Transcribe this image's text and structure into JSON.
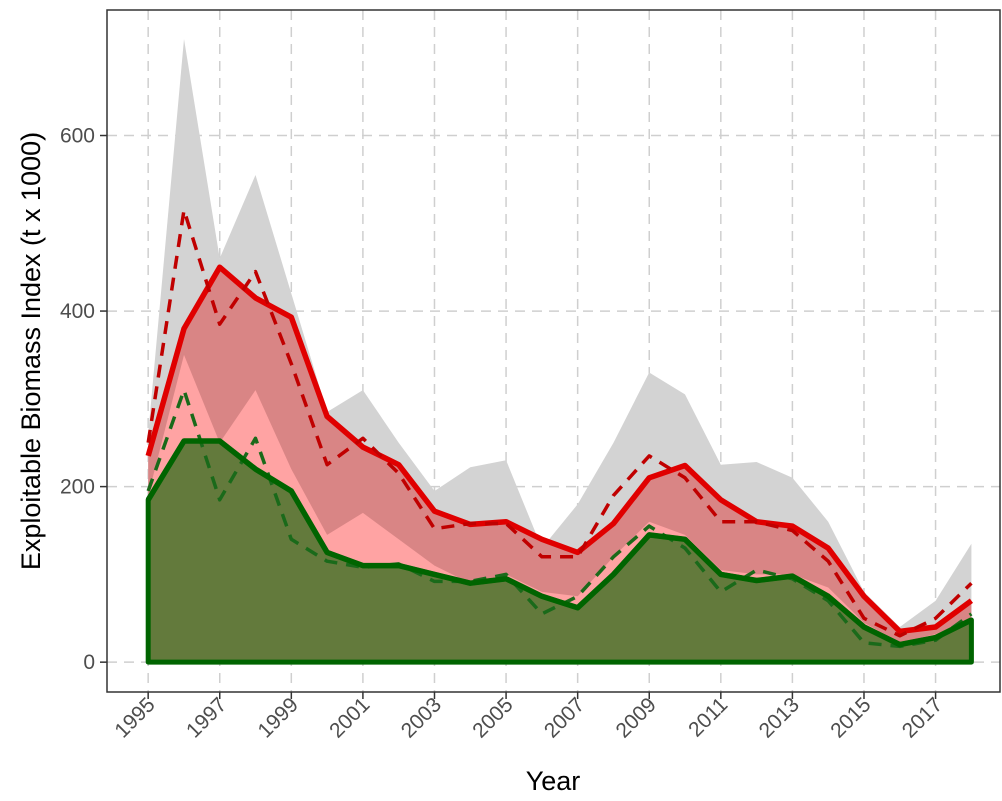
{
  "chart_data": {
    "type": "line",
    "x_label": "Year",
    "y_label": "Exploitable Biomass Index (t x 1000)",
    "x": [
      1995,
      1996,
      1997,
      1998,
      1999,
      2000,
      2001,
      2002,
      2003,
      2004,
      2005,
      2006,
      2007,
      2008,
      2009,
      2010,
      2011,
      2012,
      2013,
      2014,
      2015,
      2016,
      2017,
      2018
    ],
    "series": [
      {
        "style": "area",
        "color": "#d3d3d3",
        "values": [
          260,
          710,
          460,
          555,
          420,
          285,
          310,
          250,
          195,
          222,
          230,
          130,
          180,
          250,
          330,
          305,
          225,
          228,
          210,
          160,
          80,
          40,
          70,
          135
        ]
      },
      {
        "style": "area",
        "color": "#d98585",
        "values": [
          235,
          380,
          450,
          415,
          393,
          280,
          245,
          225,
          172,
          157,
          160,
          140,
          125,
          158,
          210,
          224,
          185,
          160,
          155,
          130,
          75,
          35,
          40,
          70
        ]
      },
      {
        "style": "area",
        "color": "#ffa3a3",
        "values": [
          190,
          350,
          250,
          310,
          220,
          145,
          170,
          140,
          110,
          90,
          100,
          80,
          75,
          120,
          160,
          145,
          105,
          100,
          100,
          85,
          45,
          22,
          32,
          50
        ]
      },
      {
        "style": "area",
        "color": "#637a3c",
        "values": [
          185,
          252,
          252,
          220,
          195,
          125,
          110,
          110,
          100,
          90,
          95,
          75,
          62,
          100,
          145,
          140,
          100,
          93,
          98,
          75,
          40,
          20,
          28,
          48
        ]
      },
      {
        "style": "solid",
        "color": "#e00000",
        "values": [
          235,
          380,
          450,
          415,
          393,
          280,
          245,
          225,
          172,
          157,
          160,
          140,
          125,
          158,
          210,
          224,
          185,
          160,
          155,
          130,
          75,
          35,
          40,
          70
        ]
      },
      {
        "style": "dashed",
        "color": "#c00000",
        "values": [
          250,
          515,
          385,
          445,
          340,
          225,
          255,
          215,
          152,
          158,
          158,
          120,
          120,
          190,
          235,
          210,
          160,
          160,
          150,
          115,
          50,
          30,
          50,
          90
        ]
      },
      {
        "style": "dashed",
        "color": "#1a6a1a",
        "values": [
          195,
          310,
          185,
          255,
          140,
          115,
          108,
          112,
          92,
          92,
          100,
          55,
          75,
          120,
          155,
          130,
          80,
          105,
          95,
          70,
          22,
          18,
          25,
          55
        ]
      },
      {
        "style": "solid",
        "color": "#006400",
        "values": [
          185,
          252,
          252,
          220,
          195,
          125,
          110,
          110,
          100,
          90,
          95,
          75,
          62,
          100,
          145,
          140,
          100,
          93,
          98,
          75,
          40,
          20,
          28,
          48
        ]
      }
    ],
    "xlim": [
      1993.85,
      2018.8
    ],
    "ylim": [
      -34,
      743
    ],
    "xticks": [
      1995,
      1997,
      1999,
      2001,
      2003,
      2005,
      2007,
      2009,
      2011,
      2013,
      2015,
      2017
    ],
    "yticks": [
      0,
      200,
      400,
      600
    ],
    "grid": true
  }
}
